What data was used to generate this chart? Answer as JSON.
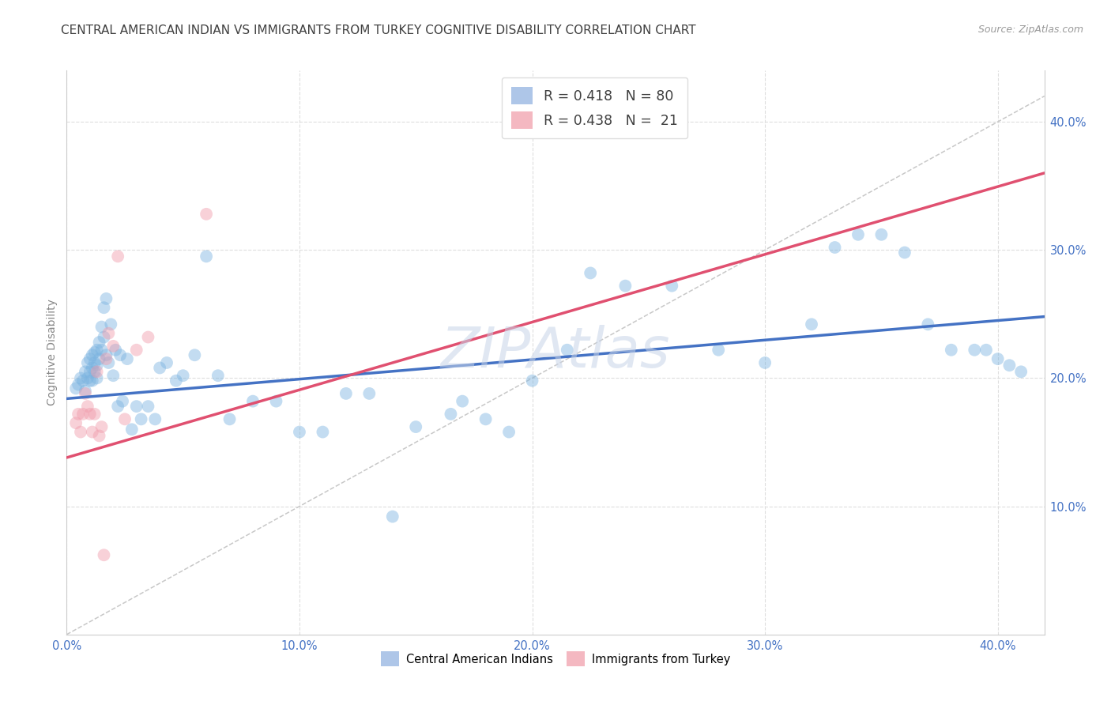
{
  "title": "CENTRAL AMERICAN INDIAN VS IMMIGRANTS FROM TURKEY COGNITIVE DISABILITY CORRELATION CHART",
  "source": "Source: ZipAtlas.com",
  "ylabel": "Cognitive Disability",
  "x_tick_labels": [
    "0.0%",
    "10.0%",
    "20.0%",
    "30.0%",
    "40.0%"
  ],
  "y_tick_labels_right": [
    "10.0%",
    "20.0%",
    "30.0%",
    "40.0%"
  ],
  "xlim": [
    0.0,
    0.42
  ],
  "ylim": [
    0.0,
    0.44
  ],
  "legend_r_n": [
    {
      "r": "0.418",
      "n": "80",
      "color": "#aec6e8"
    },
    {
      "r": "0.438",
      "n": " 21",
      "color": "#f4b8c1"
    }
  ],
  "bottom_legend": [
    {
      "label": "Central American Indians",
      "color": "#aec6e8"
    },
    {
      "label": "Immigrants from Turkey",
      "color": "#f4b8c1"
    }
  ],
  "blue_color": "#7ab3e0",
  "pink_color": "#f09aaa",
  "blue_line_color": "#4472c4",
  "pink_line_color": "#e05070",
  "ref_line_color": "#c8c8c8",
  "background_color": "#ffffff",
  "grid_color": "#dedede",
  "title_color": "#404040",
  "axis_label_color": "#4472c4",
  "blue_x": [
    0.004,
    0.005,
    0.006,
    0.007,
    0.008,
    0.008,
    0.009,
    0.009,
    0.01,
    0.01,
    0.01,
    0.011,
    0.011,
    0.011,
    0.012,
    0.012,
    0.012,
    0.013,
    0.013,
    0.013,
    0.014,
    0.014,
    0.015,
    0.015,
    0.016,
    0.016,
    0.017,
    0.017,
    0.018,
    0.019,
    0.02,
    0.021,
    0.022,
    0.023,
    0.024,
    0.026,
    0.028,
    0.03,
    0.032,
    0.035,
    0.038,
    0.04,
    0.043,
    0.047,
    0.05,
    0.055,
    0.06,
    0.065,
    0.07,
    0.08,
    0.09,
    0.1,
    0.11,
    0.12,
    0.13,
    0.14,
    0.15,
    0.165,
    0.17,
    0.18,
    0.19,
    0.2,
    0.215,
    0.225,
    0.24,
    0.26,
    0.28,
    0.3,
    0.32,
    0.33,
    0.34,
    0.35,
    0.36,
    0.37,
    0.38,
    0.39,
    0.395,
    0.4,
    0.405,
    0.41
  ],
  "blue_y": [
    0.192,
    0.195,
    0.2,
    0.198,
    0.19,
    0.205,
    0.2,
    0.212,
    0.198,
    0.205,
    0.215,
    0.198,
    0.208,
    0.218,
    0.205,
    0.212,
    0.22,
    0.2,
    0.21,
    0.222,
    0.215,
    0.228,
    0.24,
    0.222,
    0.232,
    0.255,
    0.262,
    0.218,
    0.212,
    0.242,
    0.202,
    0.222,
    0.178,
    0.218,
    0.182,
    0.215,
    0.16,
    0.178,
    0.168,
    0.178,
    0.168,
    0.208,
    0.212,
    0.198,
    0.202,
    0.218,
    0.295,
    0.202,
    0.168,
    0.182,
    0.182,
    0.158,
    0.158,
    0.188,
    0.188,
    0.092,
    0.162,
    0.172,
    0.182,
    0.168,
    0.158,
    0.198,
    0.222,
    0.282,
    0.272,
    0.272,
    0.222,
    0.212,
    0.242,
    0.302,
    0.312,
    0.312,
    0.298,
    0.242,
    0.222,
    0.222,
    0.222,
    0.215,
    0.21,
    0.205
  ],
  "pink_x": [
    0.004,
    0.005,
    0.006,
    0.007,
    0.008,
    0.009,
    0.01,
    0.011,
    0.012,
    0.013,
    0.014,
    0.015,
    0.016,
    0.017,
    0.018,
    0.02,
    0.022,
    0.025,
    0.03,
    0.035,
    0.06
  ],
  "pink_y": [
    0.165,
    0.172,
    0.158,
    0.172,
    0.188,
    0.178,
    0.172,
    0.158,
    0.172,
    0.205,
    0.155,
    0.162,
    0.062,
    0.215,
    0.235,
    0.225,
    0.295,
    0.168,
    0.222,
    0.232,
    0.328
  ],
  "blue_line_x0": 0.0,
  "blue_line_x1": 0.42,
  "blue_line_y0": 0.184,
  "blue_line_y1": 0.248,
  "pink_line_x0": 0.0,
  "pink_line_x1": 0.42,
  "pink_line_y0": 0.138,
  "pink_line_y1": 0.36,
  "ref_line_x0": 0.0,
  "ref_line_x1": 0.42,
  "ref_line_y0": 0.0,
  "ref_line_y1": 0.42,
  "marker_size": 130,
  "marker_alpha": 0.45,
  "title_fontsize": 11,
  "label_fontsize": 10,
  "tick_fontsize": 10.5,
  "watermark_text": "ZIPAtlas",
  "watermark_color": "#c8d4e8",
  "watermark_alpha": 0.55,
  "watermark_fontsize": 52
}
